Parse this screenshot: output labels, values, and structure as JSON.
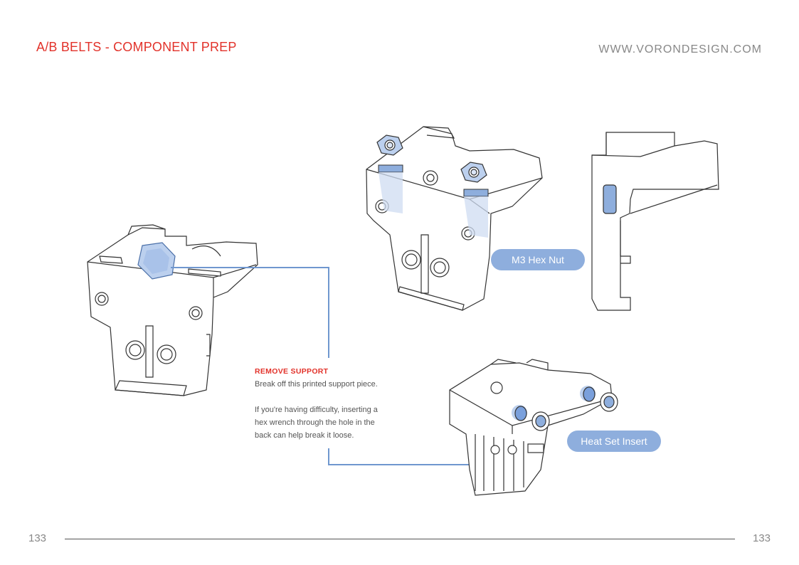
{
  "header": {
    "title": "A/B BELTS - COMPONENT PREP",
    "url": "WWW.VORONDESIGN.COM"
  },
  "callout": {
    "heading": "REMOVE SUPPORT",
    "line1": "Break off this printed support piece.",
    "line2": "If you're having difficulty, inserting a",
    "line3": "hex wrench through the hole in the",
    "line4": "back can help break it loose."
  },
  "labels": {
    "hex_nut": "M3 Hex Nut",
    "heat_set_insert": "Heat Set Insert"
  },
  "footer": {
    "page_left": "133",
    "page_right": "133"
  },
  "colors": {
    "title_red": "#e2322a",
    "highlight_blue": "#8eaedd",
    "leader_blue": "#6f97cf"
  }
}
